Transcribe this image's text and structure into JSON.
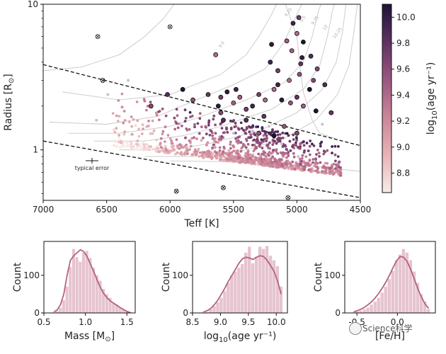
{
  "chart_data": [
    {
      "type": "scatter",
      "title": "",
      "xlabel": "Teff [K]",
      "ylabel": "Radius [R⊙]",
      "xlim": [
        7000,
        4500
      ],
      "ylim_log": [
        0.45,
        10
      ],
      "x_ticks": [
        "7000",
        "6500",
        "6000",
        "5500",
        "5000",
        "4500"
      ],
      "y_ticks": [
        "10",
        "1"
      ],
      "colorbar_label": "log10(age yr⁻¹)",
      "colorbar_range": [
        8.65,
        10.1
      ],
      "colorbar_ticks": [
        "10.0",
        "9.8",
        "9.6",
        "9.4",
        "9.2",
        "9.0",
        "8.8"
      ],
      "colormap": [
        "#f8ecea",
        "#e7b3b6",
        "#c27a93",
        "#8c4d79",
        "#4d2a58",
        "#1f1236"
      ],
      "annotation": "typical error",
      "isochrone_labels": [
        "9.0",
        "9.25",
        "9.5",
        "9.75",
        "10",
        "10.25"
      ],
      "boundary_lines": [
        {
          "x": [
            7000,
            4500
          ],
          "y": [
            3.85,
            1.07
          ]
        },
        {
          "x": [
            7000,
            4500
          ],
          "y": [
            1.15,
            0.47
          ]
        }
      ],
      "n_points": 1100
    },
    {
      "type": "bar",
      "xlabel": "Mass [M⊙]",
      "ylabel": "Count",
      "xlim": [
        0.5,
        1.6
      ],
      "ylim": [
        0,
        190
      ],
      "x_ticks": [
        "0.5",
        "1.0",
        "1.5"
      ],
      "y_ticks": [
        "0",
        "100"
      ],
      "bin_start": 0.6,
      "bin_width": 0.04,
      "values": [
        2,
        5,
        14,
        34,
        70,
        122,
        170,
        148,
        136,
        160,
        165,
        146,
        120,
        100,
        86,
        64,
        50,
        40,
        26,
        22,
        15,
        10,
        5,
        3
      ],
      "kde": [
        3,
        8,
        22,
        50,
        100,
        140,
        152,
        160,
        168,
        163,
        150,
        130,
        110,
        88,
        68,
        52,
        40,
        32,
        26,
        20,
        14,
        9,
        4,
        1
      ]
    },
    {
      "type": "bar",
      "xlabel": "log10(age yr⁻¹)",
      "ylabel": "Count",
      "xlim": [
        8.5,
        10.2
      ],
      "ylim": [
        0,
        190
      ],
      "x_ticks": [
        "8.5",
        "9.0",
        "9.5",
        "10.0"
      ],
      "y_ticks": [
        "0",
        "100"
      ],
      "bin_start": 8.67,
      "bin_width": 0.063,
      "values": [
        4,
        2,
        10,
        18,
        28,
        40,
        58,
        80,
        100,
        110,
        120,
        130,
        160,
        176,
        132,
        150,
        176,
        170,
        178,
        152,
        140,
        124,
        70
      ],
      "kde": [
        3,
        6,
        12,
        22,
        34,
        50,
        66,
        84,
        100,
        116,
        132,
        144,
        148,
        146,
        142,
        148,
        152,
        150,
        140,
        126,
        110,
        84,
        50
      ]
    },
    {
      "type": "bar",
      "xlabel": "[Fe/H]",
      "ylabel": "Count",
      "xlim": [
        -0.65,
        0.47
      ],
      "ylim": [
        0,
        190
      ],
      "x_ticks": [
        "-0.5",
        "0.0"
      ],
      "y_ticks": [
        "0",
        "100"
      ],
      "bin_start": -0.56,
      "bin_width": 0.044,
      "values": [
        2,
        4,
        6,
        10,
        14,
        22,
        30,
        40,
        54,
        70,
        90,
        112,
        140,
        155,
        170,
        160,
        140,
        110,
        80,
        50,
        30,
        10
      ],
      "kde": [
        3,
        6,
        10,
        15,
        22,
        30,
        40,
        52,
        66,
        82,
        100,
        120,
        138,
        150,
        148,
        136,
        115,
        90,
        64,
        42,
        24,
        12
      ]
    }
  ],
  "watermark": {
    "text": "Science科学"
  }
}
